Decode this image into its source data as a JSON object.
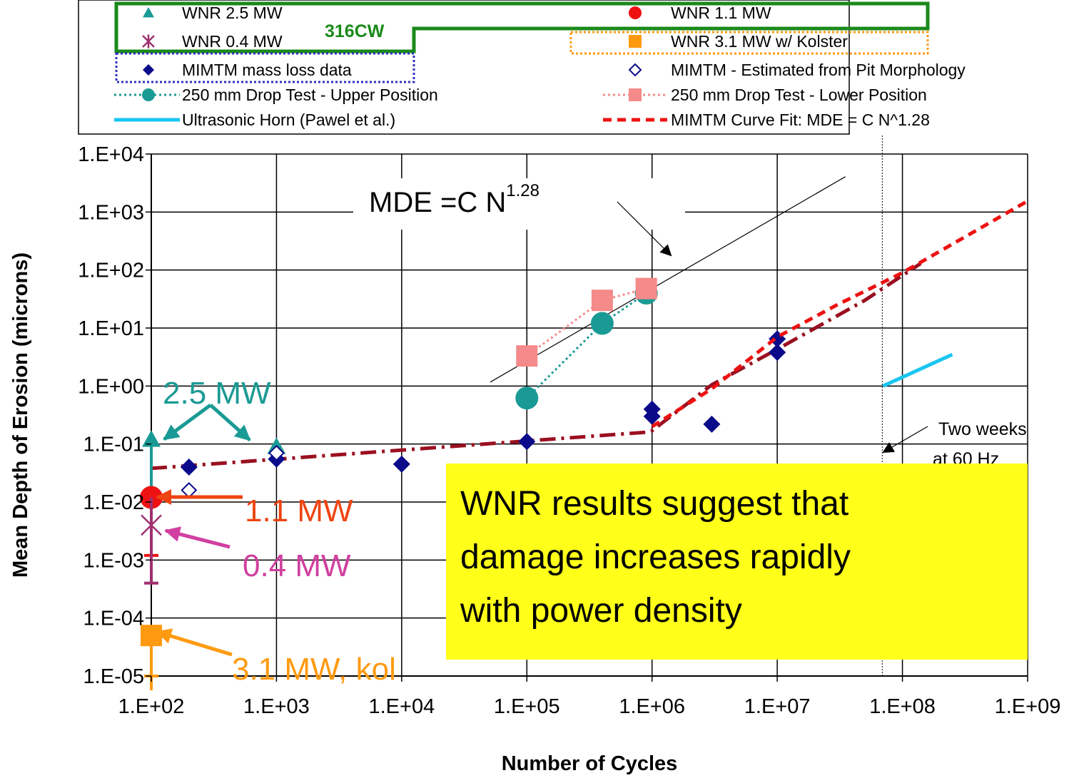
{
  "chart_data": {
    "type": "scatter",
    "xlabel": "Number of Cycles",
    "ylabel": "Mean Depth of Erosion (microns)",
    "xscale": "log",
    "yscale": "log",
    "grid": true,
    "xlim": [
      100,
      1000000000
    ],
    "ylim": [
      1e-05,
      10000
    ],
    "xticks": [
      {
        "value": 100,
        "label": "1.E+02"
      },
      {
        "value": 1000,
        "label": "1.E+03"
      },
      {
        "value": 10000,
        "label": "1.E+04"
      },
      {
        "value": 100000,
        "label": "1.E+05"
      },
      {
        "value": 1000000,
        "label": "1.E+06"
      },
      {
        "value": 10000000,
        "label": "1.E+07"
      },
      {
        "value": 100000000,
        "label": "1.E+08"
      },
      {
        "value": 1000000000,
        "label": "1.E+09"
      }
    ],
    "yticks": [
      {
        "value": 1e-05,
        "label": "1.E-05"
      },
      {
        "value": 0.0001,
        "label": "1.E-04"
      },
      {
        "value": 0.001,
        "label": "1.E-03"
      },
      {
        "value": 0.01,
        "label": "1.E-02"
      },
      {
        "value": 0.1,
        "label": "1.E-01"
      },
      {
        "value": 1,
        "label": "1.E+00"
      },
      {
        "value": 10,
        "label": "1.E+01"
      },
      {
        "value": 100,
        "label": "1.E+02"
      },
      {
        "value": 1000,
        "label": "1.E+03"
      },
      {
        "value": 10000,
        "label": "1.E+04"
      }
    ],
    "series": [
      {
        "name": "WNR 2.5 MW",
        "color": "#1a9a94",
        "marker": "triangle",
        "x": [
          100,
          1000
        ],
        "values": [
          0.12,
          0.09
        ],
        "range_low": [
          0.012,
          null
        ],
        "range_high": [
          0.12,
          null
        ]
      },
      {
        "name": "WNR 1.1 MW",
        "color": "#ee1111",
        "marker": "circle",
        "x": [
          100
        ],
        "values": [
          0.012
        ],
        "range_low": [
          0.0012
        ],
        "range_high": [
          0.012
        ]
      },
      {
        "name": "WNR 0.4 MW",
        "color": "#a03070",
        "marker": "star",
        "x": [
          100
        ],
        "values": [
          0.004
        ],
        "range_low": [
          0.0004
        ],
        "range_high": [
          0.012
        ]
      },
      {
        "name": "WNR 3.1 MW w/ Kolster",
        "color": "#ff9a10",
        "marker": "square",
        "x": [
          100
        ],
        "values": [
          5e-05
        ],
        "range_low": [
          1e-05
        ],
        "range_high": [
          5e-05
        ]
      },
      {
        "name": "MIMTM mass loss data",
        "color": "#0a0a8a",
        "marker": "diamond",
        "x": [
          200,
          1000,
          10000,
          100000,
          1000000,
          1000000,
          3000000,
          10000000,
          10000000
        ],
        "values": [
          0.04,
          0.055,
          0.045,
          0.11,
          0.4,
          0.3,
          0.22,
          6.5,
          3.8
        ]
      },
      {
        "name": "MIMTM - Estimated from Pit Morphology",
        "color": "#0a0a8a",
        "marker": "open-diamond",
        "x": [
          200,
          1000
        ],
        "values": [
          0.016,
          0.07
        ]
      },
      {
        "name": "250 mm Drop Test - Upper Position",
        "color": "#1a9a94",
        "marker": "circle",
        "line": "dotted",
        "x": [
          100000,
          400000,
          900000
        ],
        "values": [
          0.62,
          12,
          40
        ]
      },
      {
        "name": "250 mm Drop Test - Lower Position",
        "color": "#f48a8a",
        "marker": "square",
        "line": "dotted",
        "x": [
          100000,
          400000,
          900000
        ],
        "values": [
          3.3,
          30,
          48
        ]
      },
      {
        "name": "Ultrasonic Horn (Pawel et al.)",
        "color": "#19c6f0",
        "marker": "none",
        "line": "solid",
        "x": [
          70000000,
          250000000
        ],
        "values": [
          1.0,
          3.5
        ]
      },
      {
        "name": "MIMTM Curve Fit: MDE = C N^1.28",
        "color": "#ee1111",
        "marker": "none",
        "line": "dashed",
        "x": [
          1000000,
          3000000,
          10000000,
          30000000,
          100000000,
          1000000000
        ],
        "values": [
          0.2,
          0.9,
          7,
          25,
          90,
          1550
        ]
      }
    ],
    "extra_lines": [
      {
        "color": "#9a1020",
        "style": "dashdot",
        "x": [
          100,
          900000,
          1000000,
          3000000,
          10000000,
          50000000,
          140000000
        ],
        "values": [
          0.038,
          0.16,
          0.17,
          1.05,
          4.3,
          30,
          130
        ]
      },
      {
        "color": "#000000",
        "style": "thin",
        "x": [
          51000,
          35000000
        ],
        "values": [
          1.17,
          4070
        ]
      }
    ],
    "vline_x": 69000000,
    "annotations": {
      "group_label": "316CW",
      "fit_text": "MDE =C N",
      "fit_exponent": "1.28",
      "label_2_5": "2.5 MW",
      "label_1_1": "1.1 MW",
      "label_0_4": "0.4 MW",
      "label_3_1": "3.1 MW, kol",
      "two_weeks_1": "Two weeks",
      "two_weeks_2": "at 60 Hz",
      "callout": [
        "WNR results suggest that",
        "damage increases rapidly",
        "with power density"
      ]
    }
  }
}
